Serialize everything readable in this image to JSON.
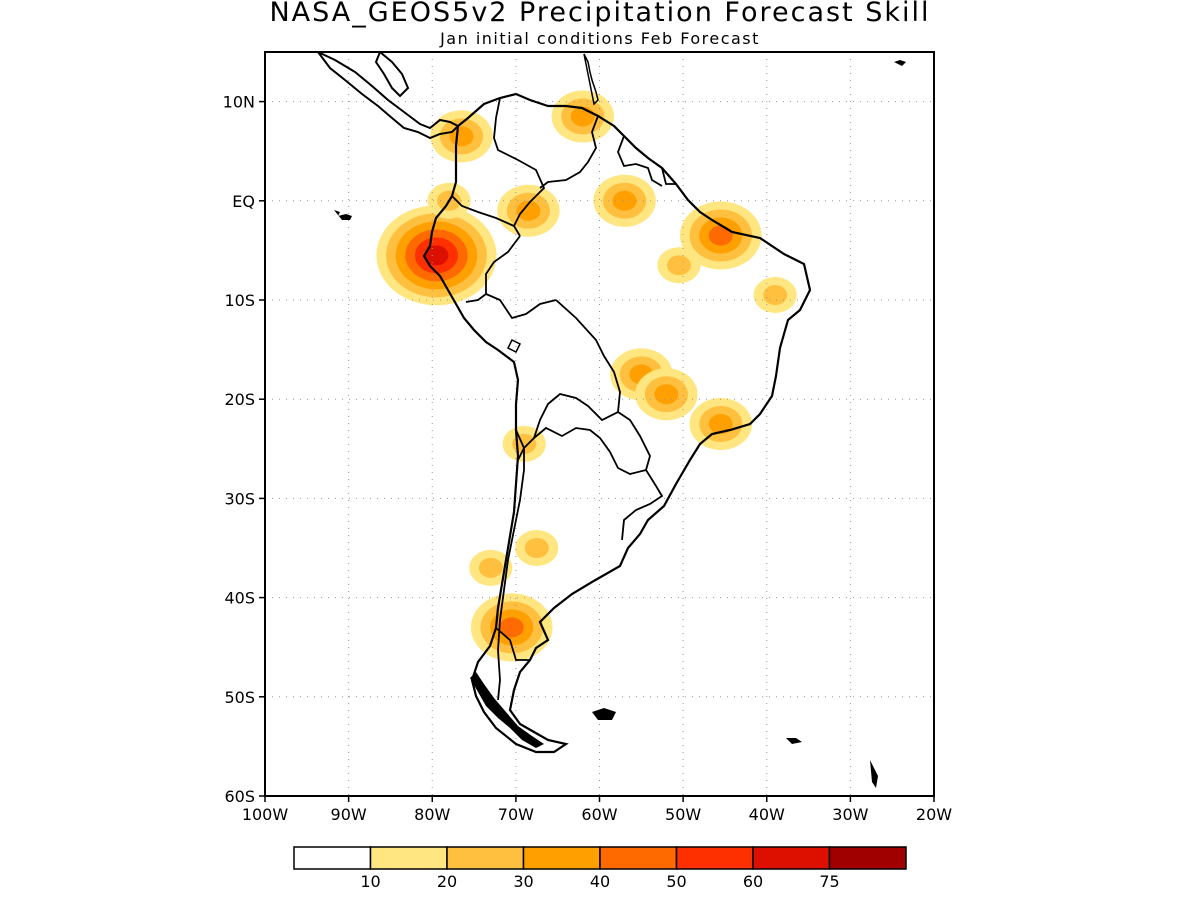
{
  "title": "NASA_GEOS5v2 Precipitation Forecast Skill",
  "subtitle": "Jan initial conditions  Feb Forecast",
  "map": {
    "lon_range": [
      -100,
      -20
    ],
    "lat_range": [
      -60,
      15
    ],
    "lon_ticks": [
      "100W",
      "90W",
      "80W",
      "70W",
      "60W",
      "50W",
      "40W",
      "30W",
      "20W"
    ],
    "lat_ticks": [
      "10N",
      "EQ",
      "10S",
      "20S",
      "30S",
      "40S",
      "50S",
      "60S"
    ],
    "gridlines": true
  },
  "legend": {
    "colors": [
      "#ffffff",
      "#ffe680",
      "#ffc040",
      "#ffa000",
      "#ff6a00",
      "#ff3000",
      "#dd1000",
      "#a00000"
    ],
    "labels": [
      "10",
      "20",
      "30",
      "40",
      "50",
      "60",
      "75"
    ]
  },
  "skill_regions": [
    {
      "lon": -79.5,
      "lat": -5.5,
      "level": 6
    },
    {
      "lon": -76.5,
      "lat": 6.5,
      "level": 3
    },
    {
      "lon": -78,
      "lat": 0,
      "level": 2
    },
    {
      "lon": -62,
      "lat": 8.5,
      "level": 3
    },
    {
      "lon": -57,
      "lat": 0,
      "level": 3
    },
    {
      "lon": -68.5,
      "lat": -1,
      "level": 3
    },
    {
      "lon": -45.5,
      "lat": -3.5,
      "level": 4
    },
    {
      "lon": -50.5,
      "lat": -6.5,
      "level": 2
    },
    {
      "lon": -39,
      "lat": -9.5,
      "level": 2
    },
    {
      "lon": -55,
      "lat": -17.5,
      "level": 3
    },
    {
      "lon": -52,
      "lat": -19.5,
      "level": 3
    },
    {
      "lon": -45.5,
      "lat": -22.5,
      "level": 3
    },
    {
      "lon": -69,
      "lat": -24.5,
      "level": 2
    },
    {
      "lon": -67.5,
      "lat": -35,
      "level": 2
    },
    {
      "lon": -70.5,
      "lat": -43,
      "level": 4
    },
    {
      "lon": -73,
      "lat": -37,
      "level": 2
    }
  ]
}
